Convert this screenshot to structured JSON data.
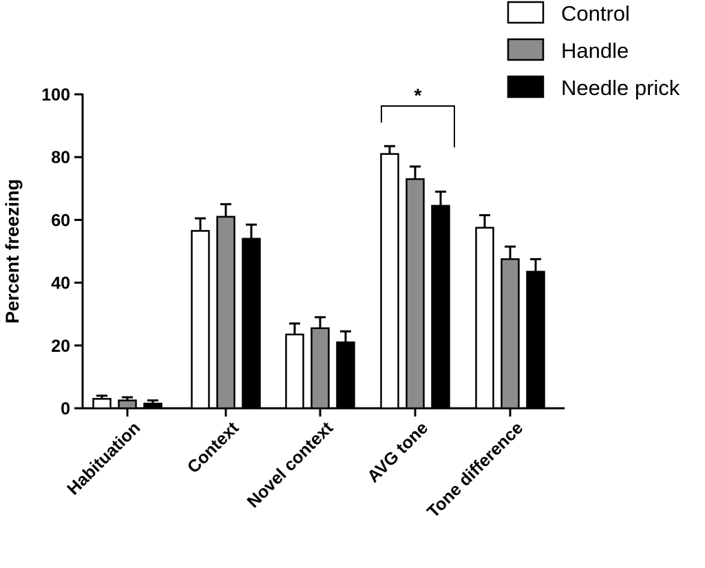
{
  "chart_data": {
    "type": "bar",
    "ylabel": "Percent freezing",
    "xlabel": "",
    "ylim": [
      0,
      100
    ],
    "yticks": [
      "0",
      "20",
      "40",
      "60",
      "80",
      "100"
    ],
    "categories": [
      "Habituation",
      "Context",
      "Novel context",
      "AVG tone",
      "Tone difference"
    ],
    "series": [
      {
        "name": "Control",
        "color": "#ffffff",
        "values": [
          3,
          56.5,
          23.5,
          81,
          57.5
        ],
        "errors": [
          1,
          4,
          3.5,
          2.5,
          4
        ]
      },
      {
        "name": "Handle",
        "color": "#8c8c8c",
        "values": [
          2.5,
          61,
          25.5,
          73,
          47.5
        ],
        "errors": [
          1,
          4,
          3.5,
          4,
          4
        ]
      },
      {
        "name": "Needle prick",
        "color": "#000000",
        "values": [
          1.5,
          54,
          21,
          64.5,
          43.5
        ],
        "errors": [
          1,
          4.5,
          3.5,
          4.5,
          4
        ]
      }
    ],
    "significance": {
      "category": "AVG tone",
      "from": "Control",
      "to": "Needle prick",
      "label": "*"
    },
    "legend_position": "top-right",
    "grid": false
  }
}
